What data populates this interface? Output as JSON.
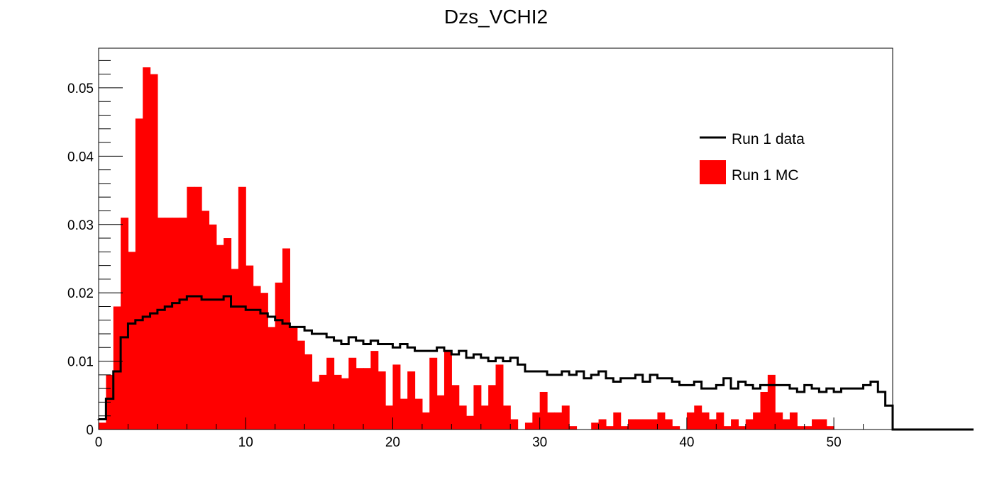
{
  "chart_data": {
    "type": "histogram",
    "title": "Dzs_VCHI2",
    "xlabel": "",
    "ylabel": "",
    "xlim": [
      0,
      54
    ],
    "ylim": [
      0,
      0.0558
    ],
    "bin_width": 0.5,
    "grid": false,
    "legend_position": "top-right",
    "x_ticks": [
      0,
      10,
      20,
      30,
      40,
      50
    ],
    "x_tick_labels": [
      "0",
      "10",
      "20",
      "30",
      "40",
      "50"
    ],
    "y_ticks": [
      0,
      0.01,
      0.02,
      0.03,
      0.04,
      0.05
    ],
    "y_tick_labels": [
      "0",
      "0.01",
      "0.02",
      "0.03",
      "0.04",
      "0.05"
    ],
    "series": [
      {
        "name": "Run 1 MC",
        "style": "filled",
        "color": "#ff0000",
        "values": [
          0.001,
          0.008,
          0.018,
          0.031,
          0.026,
          0.0455,
          0.053,
          0.052,
          0.031,
          0.031,
          0.031,
          0.031,
          0.0355,
          0.0355,
          0.032,
          0.03,
          0.027,
          0.028,
          0.0235,
          0.0355,
          0.024,
          0.021,
          0.02,
          0.015,
          0.0215,
          0.0265,
          0.015,
          0.013,
          0.011,
          0.007,
          0.008,
          0.0105,
          0.008,
          0.0075,
          0.0105,
          0.009,
          0.009,
          0.0115,
          0.0085,
          0.0035,
          0.0095,
          0.0045,
          0.0085,
          0.0045,
          0.0025,
          0.0105,
          0.005,
          0.0115,
          0.0065,
          0.0035,
          0.002,
          0.0065,
          0.0035,
          0.0065,
          0.0095,
          0.0035,
          0.0015,
          0,
          0.001,
          0.0025,
          0.0055,
          0.0025,
          0.0025,
          0.0035,
          0.0005,
          0,
          0,
          0.001,
          0.0015,
          0.0005,
          0.0025,
          0.0005,
          0.0015,
          0.0015,
          0.0015,
          0.0015,
          0.0025,
          0.0015,
          0.0005,
          0,
          0.0025,
          0.0035,
          0.0025,
          0.0015,
          0.0025,
          0.0005,
          0.0015,
          0.0005,
          0.0015,
          0.0025,
          0.0055,
          0.008,
          0.0025,
          0.0015,
          0.0025,
          0.0005,
          0.0005,
          0.0015,
          0.0015,
          0.0005,
          0,
          0,
          0,
          0,
          0,
          0,
          0,
          0
        ]
      },
      {
        "name": "Run 1 data",
        "style": "step",
        "color": "#000000",
        "values": [
          0.0015,
          0.0045,
          0.0085,
          0.0135,
          0.0155,
          0.016,
          0.0165,
          0.017,
          0.0175,
          0.018,
          0.0185,
          0.019,
          0.0195,
          0.0195,
          0.019,
          0.019,
          0.019,
          0.0195,
          0.018,
          0.018,
          0.0175,
          0.0175,
          0.017,
          0.0165,
          0.016,
          0.0155,
          0.015,
          0.015,
          0.0145,
          0.014,
          0.014,
          0.0135,
          0.013,
          0.0125,
          0.0135,
          0.013,
          0.0125,
          0.013,
          0.0125,
          0.0125,
          0.012,
          0.0125,
          0.012,
          0.0115,
          0.0115,
          0.0115,
          0.012,
          0.0115,
          0.011,
          0.0115,
          0.0105,
          0.011,
          0.0105,
          0.01,
          0.0105,
          0.01,
          0.0105,
          0.0095,
          0.0085,
          0.0085,
          0.0085,
          0.008,
          0.008,
          0.0085,
          0.008,
          0.0085,
          0.0075,
          0.008,
          0.0085,
          0.0075,
          0.007,
          0.0075,
          0.0075,
          0.008,
          0.007,
          0.008,
          0.0075,
          0.0075,
          0.007,
          0.0065,
          0.0065,
          0.007,
          0.006,
          0.006,
          0.0065,
          0.0075,
          0.006,
          0.007,
          0.0065,
          0.006,
          0.0065,
          0.0065,
          0.0065,
          0.0065,
          0.006,
          0.0055,
          0.0065,
          0.006,
          0.0055,
          0.006,
          0.0055,
          0.006,
          0.006,
          0.006,
          0.0065,
          0.007,
          0.0055,
          0.0035,
          0,
          0,
          0,
          0,
          0,
          0,
          0,
          0,
          0,
          0,
          0
        ]
      }
    ]
  }
}
